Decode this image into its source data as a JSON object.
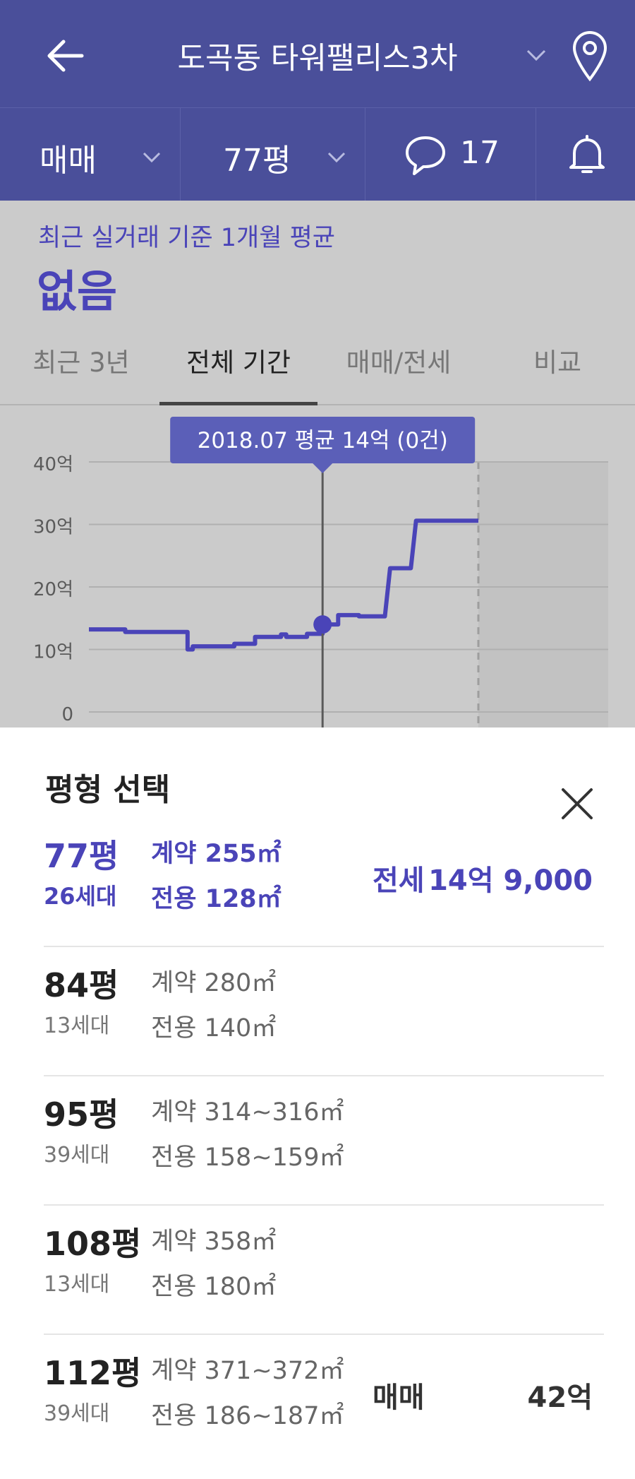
{
  "header": {
    "title": "도곡동 타워팰리스3차",
    "back_icon": "arrow-left-icon",
    "title_dropdown_icon": "chevron-down-icon",
    "location_icon": "map-pin-icon",
    "bg_color": "#4a4f9a"
  },
  "subbar": {
    "trade_type": "매매",
    "size": "77평",
    "comment_count": "17",
    "comment_icon": "speech-bubble-icon",
    "bell_icon": "bell-icon"
  },
  "summary": {
    "caption": "최근 실거래 기준 1개월 평균",
    "value": "없음",
    "accent_color": "#4a44b8"
  },
  "tabs": [
    {
      "label": "최근 3년",
      "active": false
    },
    {
      "label": "전체 기간",
      "active": true
    },
    {
      "label": "매매/전세",
      "active": false
    },
    {
      "label": "비교",
      "active": false
    }
  ],
  "chart_data": {
    "type": "line",
    "y_tick_labels": [
      "40억",
      "30억",
      "20억",
      "10억",
      "0"
    ],
    "ylim": [
      0,
      40
    ],
    "y_unit": "억",
    "tooltip": "2018.07 평균 14억 (0건)",
    "highlight_point": {
      "x": "2018.07",
      "y": 14
    },
    "series": [
      {
        "values": [
          [
            0,
            13.2
          ],
          [
            7,
            13.2
          ],
          [
            7,
            12.8
          ],
          [
            19,
            12.8
          ],
          [
            19,
            10
          ],
          [
            20,
            10
          ],
          [
            20,
            10.5
          ],
          [
            28,
            10.5
          ],
          [
            28,
            10.9
          ],
          [
            32,
            10.9
          ],
          [
            32,
            12
          ],
          [
            37,
            12
          ],
          [
            37,
            12.4
          ],
          [
            38,
            12.4
          ],
          [
            38,
            12
          ],
          [
            42,
            12
          ],
          [
            42,
            12.5
          ],
          [
            45,
            12.5
          ],
          [
            45,
            14
          ],
          [
            48,
            14
          ],
          [
            48,
            15.5
          ],
          [
            52,
            15.5
          ],
          [
            52,
            15.3
          ],
          [
            57,
            15.3
          ],
          [
            58,
            23
          ],
          [
            62,
            23
          ],
          [
            63,
            30.6
          ],
          [
            75,
            30.6
          ]
        ]
      }
    ]
  },
  "sheet": {
    "title": "평형 선택",
    "close_icon": "close-icon",
    "rows": [
      {
        "size": "77평",
        "households": "26세대",
        "contract_area": "계약 255㎡",
        "exclusive_area": "전용 128㎡",
        "trade_type": "전세",
        "price": "14억 9,000",
        "selected": true
      },
      {
        "size": "84평",
        "households": "13세대",
        "contract_area": "계약 280㎡",
        "exclusive_area": "전용 140㎡",
        "trade_type": "",
        "price": "",
        "selected": false
      },
      {
        "size": "95평",
        "households": "39세대",
        "contract_area": "계약 314~316㎡",
        "exclusive_area": "전용 158~159㎡",
        "trade_type": "",
        "price": "",
        "selected": false
      },
      {
        "size": "108평",
        "households": "13세대",
        "contract_area": "계약 358㎡",
        "exclusive_area": "전용 180㎡",
        "trade_type": "",
        "price": "",
        "selected": false
      },
      {
        "size": "112평",
        "households": "39세대",
        "contract_area": "계약 371~372㎡",
        "exclusive_area": "전용 186~187㎡",
        "trade_type": "매매",
        "price": "42억",
        "selected": false
      }
    ]
  }
}
